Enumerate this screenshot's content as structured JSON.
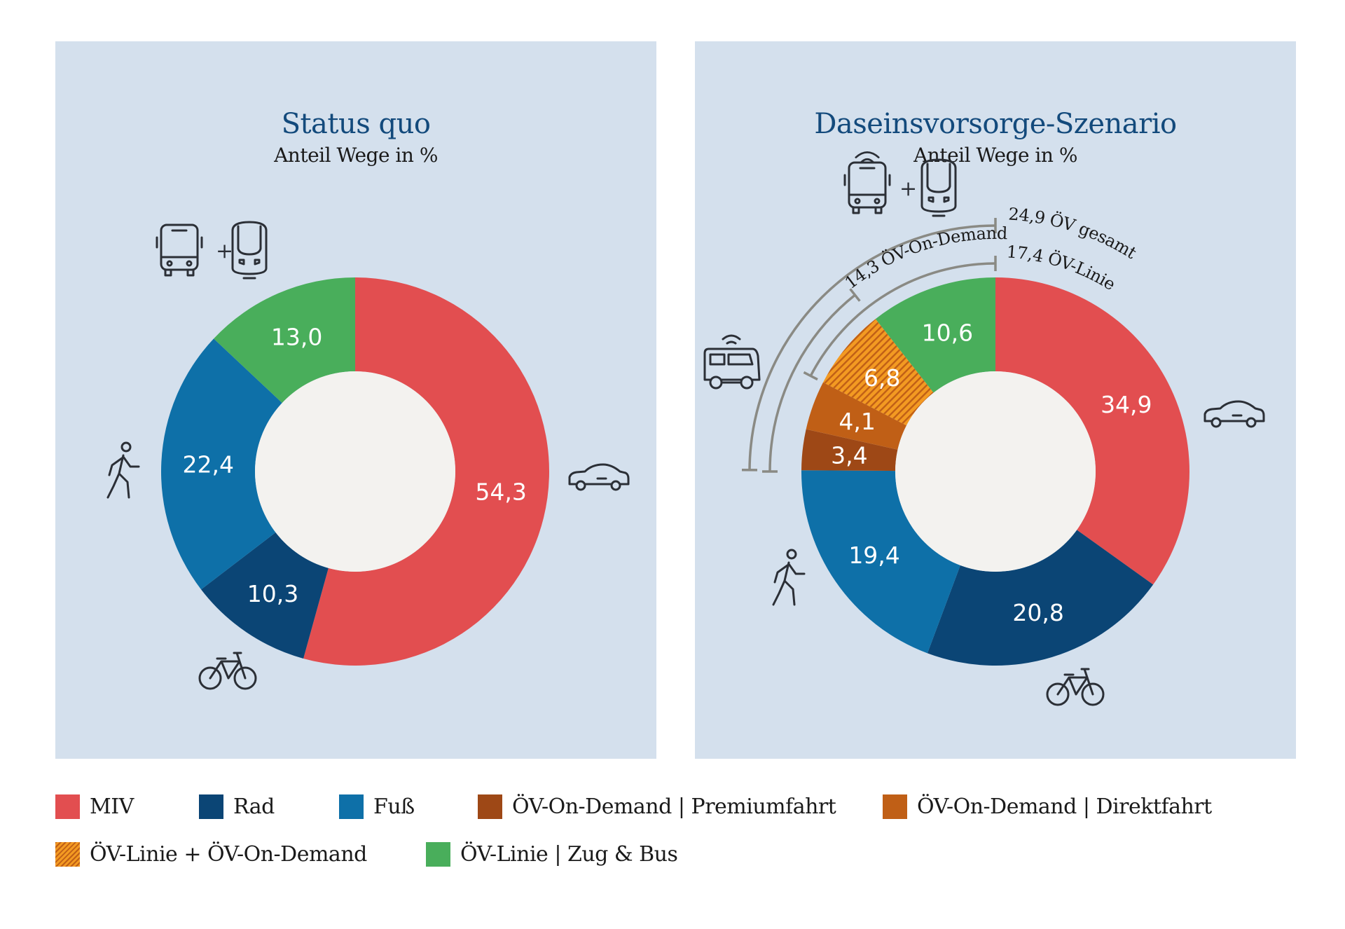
{
  "colors": {
    "panel_bg": "#d4e0ed",
    "center": "#f3f2ef",
    "title": "#134a7c",
    "MIV": "#e24e50",
    "Rad": "#0b4575",
    "Fuss": "#0e70a8",
    "Premium": "#9e4816",
    "Direkt": "#c05f16",
    "Hatched": "#f39a22",
    "Linie": "#49ae5b",
    "bracket": "#8a8a84"
  },
  "chart_data": [
    {
      "type": "pie",
      "title": "Status quo",
      "subtitle": "Anteil Wege in %",
      "categories": [
        "MIV",
        "Rad",
        "Fuß",
        "ÖV-Linie | Zug & Bus"
      ],
      "values": [
        54.3,
        10.3,
        22.4,
        13.0
      ],
      "labels": [
        "54,3",
        "10,3",
        "22,4",
        "13,0"
      ],
      "color_keys": [
        "MIV",
        "Rad",
        "Fuss",
        "Linie"
      ]
    },
    {
      "type": "pie",
      "title": "Daseinsvorsorge-Szenario",
      "subtitle": "Anteil Wege in %",
      "categories": [
        "MIV",
        "Rad",
        "Fuß",
        "ÖV-On-Demand | Premiumfahrt",
        "ÖV-On-Demand | Direktfahrt",
        "ÖV-Linie + ÖV-On-Demand",
        "ÖV-Linie | Zug & Bus"
      ],
      "values": [
        34.9,
        20.8,
        19.4,
        3.4,
        4.1,
        6.8,
        10.6
      ],
      "labels": [
        "34,9",
        "20,8",
        "19,4",
        "3,4",
        "4,1",
        "6,8",
        "10,6"
      ],
      "color_keys": [
        "MIV",
        "Rad",
        "Fuss",
        "Premium",
        "Direkt",
        "Hatched",
        "Linie"
      ],
      "annotations": [
        {
          "text": "24,9 ÖV gesamt",
          "value": 24.9
        },
        {
          "text": "17,4 ÖV-Linie",
          "value": 17.4
        },
        {
          "text": "14,3 ÖV-On-Demand",
          "value": 14.3
        }
      ]
    }
  ],
  "legend": [
    {
      "label": "MIV",
      "color_key": "MIV"
    },
    {
      "label": "Rad",
      "color_key": "Rad"
    },
    {
      "label": "Fuß",
      "color_key": "Fuss"
    },
    {
      "label": "ÖV-On-Demand | Premiumfahrt",
      "color_key": "Premium"
    },
    {
      "label": "ÖV-On-Demand | Direktfahrt",
      "color_key": "Direkt"
    },
    {
      "label": "ÖV-Linie + ÖV-On-Demand",
      "color_key": "Hatched"
    },
    {
      "label": "ÖV-Linie | Zug & Bus",
      "color_key": "Linie"
    }
  ],
  "icons": [
    "car-icon",
    "bicycle-icon",
    "pedestrian-icon",
    "bus-icon",
    "train-icon",
    "on-demand-bus-icon"
  ]
}
